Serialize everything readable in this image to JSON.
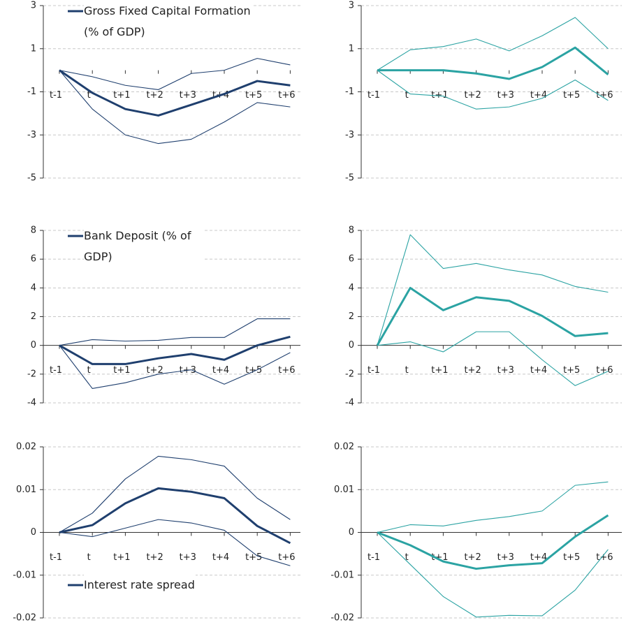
{
  "chart_data": [
    {
      "type": "line",
      "categories": [
        "t-1",
        "t",
        "t+1",
        "t+2",
        "t+3",
        "t+4",
        "t+5",
        "t+6"
      ],
      "ylim": [
        -5,
        3
      ],
      "yticks": [
        -5,
        -3,
        -1,
        1,
        3
      ],
      "grid": true,
      "legend": "upper left",
      "series": [
        {
          "name": "Gross Fixed Capital Formation (% of GDP)",
          "color": "#1f3f6e",
          "values": [
            0,
            -1.05,
            -1.8,
            -2.1,
            -1.6,
            -1.1,
            -0.5,
            -0.7
          ]
        },
        {
          "color": "#1f3f6e",
          "values": [
            0,
            -0.3,
            -0.7,
            -0.9,
            -0.15,
            0,
            0.55,
            0.25
          ]
        },
        {
          "color": "#1f3f6e",
          "values": [
            0,
            -1.8,
            -3,
            -3.4,
            -3.2,
            -2.4,
            -1.5,
            -1.7
          ]
        }
      ]
    },
    {
      "type": "line",
      "categories": [
        "t-1",
        "t",
        "t+1",
        "t+2",
        "t+3",
        "t+4",
        "t+5",
        "t+6"
      ],
      "ylim": [
        -5,
        3
      ],
      "yticks": [
        -5,
        -3,
        -1,
        1,
        3
      ],
      "grid": true,
      "series": [
        {
          "color": "#2ba3a3",
          "values": [
            0,
            0,
            0,
            -0.15,
            -0.4,
            0.15,
            1.05,
            -0.2
          ]
        },
        {
          "color": "#2ba3a3",
          "values": [
            0,
            0.95,
            1.1,
            1.45,
            0.9,
            1.6,
            2.45,
            1.0
          ]
        },
        {
          "color": "#2ba3a3",
          "values": [
            0,
            -1.1,
            -1.2,
            -1.8,
            -1.7,
            -1.3,
            -0.45,
            -1.4
          ]
        }
      ]
    },
    {
      "type": "line",
      "categories": [
        "t-1",
        "t",
        "t+1",
        "t+2",
        "t+3",
        "t+4",
        "t+5",
        "t+6"
      ],
      "ylim": [
        -4,
        8
      ],
      "yticks": [
        -4,
        -2,
        0,
        2,
        4,
        6,
        8
      ],
      "grid": true,
      "legend": "upper left",
      "series": [
        {
          "name": "Bank Deposit (% of GDP)",
          "color": "#1f3f6e",
          "values": [
            0,
            -1.3,
            -1.3,
            -0.9,
            -0.6,
            -1.0,
            0,
            0.6
          ]
        },
        {
          "color": "#1f3f6e",
          "values": [
            0,
            0.4,
            0.3,
            0.35,
            0.55,
            0.55,
            1.85,
            1.85
          ]
        },
        {
          "color": "#1f3f6e",
          "values": [
            0,
            -3,
            -2.6,
            -2,
            -1.7,
            -2.7,
            -1.7,
            -0.5
          ]
        }
      ]
    },
    {
      "type": "line",
      "categories": [
        "t-1",
        "t",
        "t+1",
        "t+2",
        "t+3",
        "t+4",
        "t+5",
        "t+6"
      ],
      "ylim": [
        -4,
        8
      ],
      "yticks": [
        -4,
        -2,
        0,
        2,
        4,
        6,
        8
      ],
      "grid": true,
      "series": [
        {
          "color": "#2ba3a3",
          "values": [
            0,
            4,
            2.45,
            3.35,
            3.1,
            2.05,
            0.65,
            0.85
          ]
        },
        {
          "color": "#2ba3a3",
          "values": [
            0,
            7.7,
            5.35,
            5.7,
            5.25,
            4.9,
            4.1,
            3.7
          ]
        },
        {
          "color": "#2ba3a3",
          "values": [
            0,
            0.25,
            -0.45,
            0.95,
            0.95,
            -1.0,
            -2.8,
            -1.8
          ]
        }
      ]
    },
    {
      "type": "line",
      "categories": [
        "t-1",
        "t",
        "t+1",
        "t+2",
        "t+3",
        "t+4",
        "t+5",
        "t+6"
      ],
      "ylim": [
        -0.02,
        0.02
      ],
      "yticks": [
        -0.02,
        -0.01,
        0,
        0.01,
        0.02
      ],
      "grid": true,
      "legend": "lower left",
      "series": [
        {
          "name": "Interest rate spread",
          "color": "#1f3f6e",
          "values": [
            0,
            0.0017,
            0.0068,
            0.0103,
            0.0095,
            0.008,
            0.0015,
            -0.0025
          ]
        },
        {
          "color": "#1f3f6e",
          "values": [
            0,
            0.0045,
            0.0125,
            0.0178,
            0.017,
            0.0155,
            0.008,
            0.003
          ]
        },
        {
          "color": "#1f3f6e",
          "values": [
            0,
            -0.001,
            0.001,
            0.003,
            0.0022,
            0.0005,
            -0.0055,
            -0.0078
          ]
        }
      ]
    },
    {
      "type": "line",
      "categories": [
        "t-1",
        "t",
        "t+1",
        "t+2",
        "t+3",
        "t+4",
        "t+5",
        "t+6"
      ],
      "ylim": [
        -0.02,
        0.02
      ],
      "yticks": [
        -0.02,
        -0.01,
        0,
        0.01,
        0.02
      ],
      "grid": true,
      "series": [
        {
          "color": "#2ba3a3",
          "values": [
            0,
            -0.003,
            -0.0068,
            -0.0085,
            -0.0077,
            -0.0072,
            -0.001,
            0.004
          ]
        },
        {
          "color": "#2ba3a3",
          "values": [
            0,
            0.0018,
            0.0015,
            0.0028,
            0.0037,
            0.005,
            0.011,
            0.0118
          ]
        },
        {
          "color": "#2ba3a3",
          "values": [
            0,
            -0.0075,
            -0.015,
            -0.0198,
            -0.0194,
            -0.0195,
            -0.0135,
            -0.004
          ]
        }
      ]
    }
  ]
}
